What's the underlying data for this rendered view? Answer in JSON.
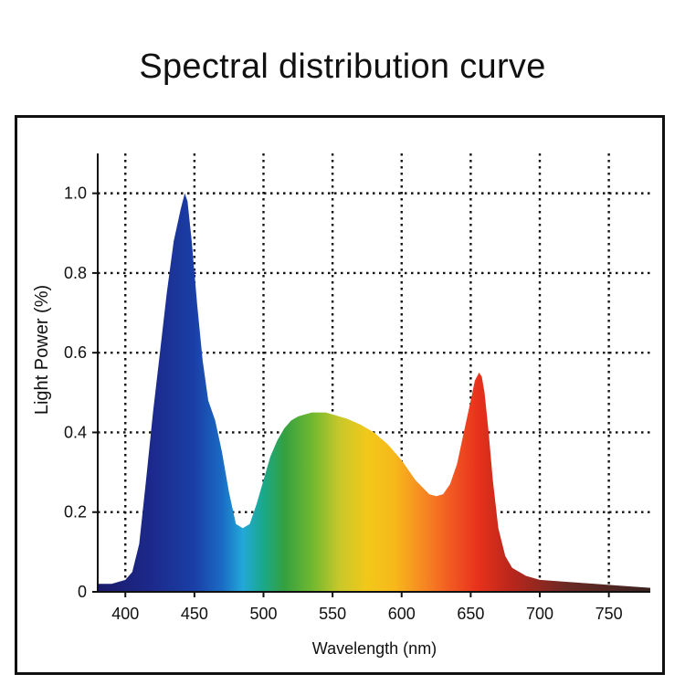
{
  "page": {
    "title": "Spectral distribution curve"
  },
  "chart_data": {
    "type": "area",
    "title": "Spectral distribution curve",
    "xlabel": "Wavelength (nm)",
    "ylabel": "Light Power (%)",
    "xlim": [
      380,
      780
    ],
    "ylim": [
      0,
      1.1
    ],
    "x_ticks": [
      400,
      450,
      500,
      550,
      600,
      650,
      700,
      750
    ],
    "x_tick_labels": [
      "400",
      "450",
      "500",
      "550",
      "600",
      "650",
      "700",
      "750"
    ],
    "y_ticks": [
      0,
      0.2,
      0.4,
      0.6,
      0.8,
      1.0
    ],
    "y_tick_labels": [
      "0",
      "0.2",
      "0.4",
      "0.6",
      "0.8",
      "1.0"
    ],
    "grid": true,
    "fill": "visible-spectrum gradient",
    "series": [
      {
        "x": [
          380,
          390,
          400,
          405,
          410,
          415,
          420,
          425,
          430,
          435,
          440,
          443,
          445,
          448,
          452,
          456,
          460,
          465,
          470,
          475,
          480,
          485,
          490,
          495,
          500,
          505,
          510,
          515,
          520,
          525,
          530,
          535,
          540,
          545,
          550,
          560,
          570,
          580,
          590,
          600,
          610,
          620,
          625,
          630,
          635,
          640,
          645,
          650,
          653,
          656,
          658,
          660,
          663,
          666,
          670,
          675,
          680,
          690,
          700,
          720,
          740,
          760,
          780
        ],
        "y": [
          0.02,
          0.02,
          0.03,
          0.05,
          0.12,
          0.28,
          0.45,
          0.6,
          0.75,
          0.88,
          0.96,
          1.0,
          0.98,
          0.88,
          0.72,
          0.58,
          0.48,
          0.43,
          0.35,
          0.25,
          0.17,
          0.16,
          0.17,
          0.22,
          0.28,
          0.34,
          0.38,
          0.41,
          0.43,
          0.44,
          0.445,
          0.45,
          0.45,
          0.45,
          0.445,
          0.435,
          0.42,
          0.4,
          0.37,
          0.33,
          0.28,
          0.245,
          0.24,
          0.245,
          0.27,
          0.32,
          0.4,
          0.48,
          0.53,
          0.55,
          0.54,
          0.5,
          0.4,
          0.28,
          0.16,
          0.09,
          0.06,
          0.04,
          0.03,
          0.025,
          0.02,
          0.015,
          0.01
        ]
      }
    ]
  }
}
